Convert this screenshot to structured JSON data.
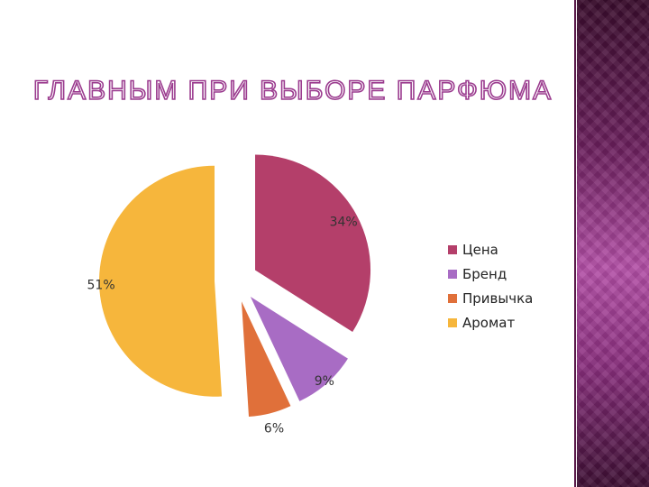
{
  "slide": {
    "title": "ГЛАВНЫМ ПРИ ВЫБОРЕ ПАРФЮМА",
    "accent_color": "#9b3c8f"
  },
  "chart_data": {
    "type": "pie",
    "slices": [
      {
        "label": "Цена",
        "value": 34,
        "value_label": "34%",
        "color": "#b43f6a",
        "exploded": true
      },
      {
        "label": "Бренд",
        "value": 9,
        "value_label": "9%",
        "color": "#a86cc4",
        "exploded": true
      },
      {
        "label": "Привычка",
        "value": 6,
        "value_label": "6%",
        "color": "#e0703a",
        "exploded": true
      },
      {
        "label": "Аромат",
        "value": 51,
        "value_label": "51%",
        "color": "#f6b63c",
        "exploded": true
      }
    ],
    "legend_position": "right"
  }
}
